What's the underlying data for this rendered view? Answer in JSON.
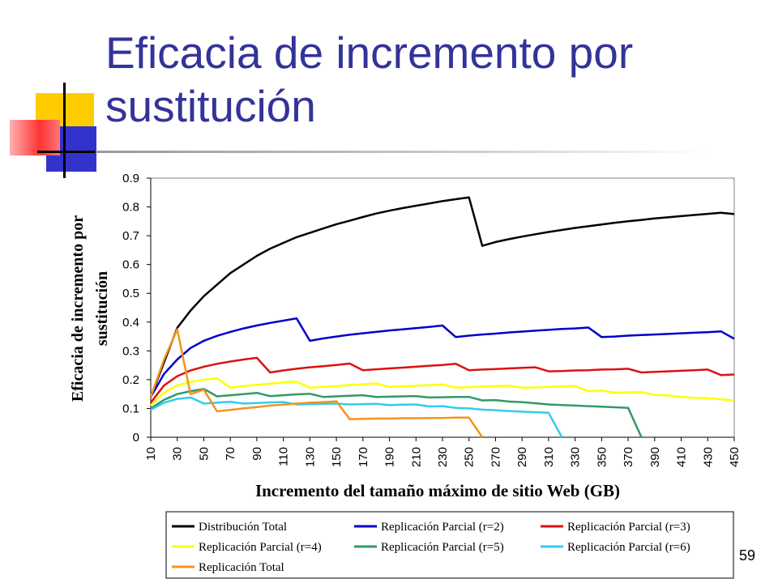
{
  "slide": {
    "title": "Eficacia de incremento por sustitución",
    "page_number": "59"
  },
  "colors": {
    "title": "#333399",
    "accent_yellow": "#FFCC00",
    "accent_blue": "#3333CC",
    "accent_red": "#FF3333"
  },
  "chart_data": {
    "type": "line",
    "title": "",
    "xlabel": "Incremento del tamaño máximo de sitio Web (GB)",
    "ylabel": "Eficacia de incremento por sustitución",
    "xlim": [
      10,
      450
    ],
    "ylim": [
      0,
      0.9
    ],
    "x_ticks": [
      10,
      30,
      50,
      70,
      90,
      110,
      130,
      150,
      170,
      190,
      210,
      230,
      250,
      270,
      290,
      310,
      330,
      350,
      370,
      390,
      410,
      430,
      450
    ],
    "y_ticks": [
      "0",
      "0.1",
      "0.2",
      "0.3",
      "0.4",
      "0.5",
      "0.6",
      "0.7",
      "0.8",
      "0.9"
    ],
    "legend_position": "bottom",
    "series": [
      {
        "name": "Distribución Total",
        "color": "#000000",
        "points": [
          [
            10,
            0.14
          ],
          [
            20,
            0.26
          ],
          [
            30,
            0.38
          ],
          [
            40,
            0.44
          ],
          [
            50,
            0.49
          ],
          [
            60,
            0.53
          ],
          [
            70,
            0.57
          ],
          [
            80,
            0.6
          ],
          [
            90,
            0.63
          ],
          [
            100,
            0.655
          ],
          [
            110,
            0.675
          ],
          [
            120,
            0.695
          ],
          [
            130,
            0.71
          ],
          [
            140,
            0.725
          ],
          [
            150,
            0.74
          ],
          [
            160,
            0.752
          ],
          [
            170,
            0.765
          ],
          [
            180,
            0.777
          ],
          [
            190,
            0.787
          ],
          [
            200,
            0.796
          ],
          [
            210,
            0.804
          ],
          [
            220,
            0.812
          ],
          [
            230,
            0.82
          ],
          [
            240,
            0.827
          ],
          [
            250,
            0.833
          ],
          [
            260,
            0.665
          ],
          [
            270,
            0.678
          ],
          [
            280,
            0.688
          ],
          [
            290,
            0.697
          ],
          [
            300,
            0.705
          ],
          [
            310,
            0.713
          ],
          [
            320,
            0.72
          ],
          [
            330,
            0.727
          ],
          [
            340,
            0.733
          ],
          [
            350,
            0.739
          ],
          [
            360,
            0.745
          ],
          [
            370,
            0.75
          ],
          [
            380,
            0.755
          ],
          [
            390,
            0.76
          ],
          [
            400,
            0.764
          ],
          [
            410,
            0.768
          ],
          [
            420,
            0.772
          ],
          [
            430,
            0.776
          ],
          [
            440,
            0.78
          ],
          [
            450,
            0.775
          ]
        ]
      },
      {
        "name": "Replicación Parcial (r=2)",
        "color": "#0000CC",
        "points": [
          [
            10,
            0.14
          ],
          [
            20,
            0.22
          ],
          [
            30,
            0.27
          ],
          [
            40,
            0.31
          ],
          [
            50,
            0.335
          ],
          [
            60,
            0.352
          ],
          [
            70,
            0.366
          ],
          [
            80,
            0.378
          ],
          [
            90,
            0.388
          ],
          [
            100,
            0.397
          ],
          [
            110,
            0.405
          ],
          [
            120,
            0.413
          ],
          [
            130,
            0.335
          ],
          [
            140,
            0.343
          ],
          [
            150,
            0.35
          ],
          [
            160,
            0.356
          ],
          [
            170,
            0.361
          ],
          [
            180,
            0.366
          ],
          [
            190,
            0.371
          ],
          [
            200,
            0.375
          ],
          [
            210,
            0.379
          ],
          [
            220,
            0.383
          ],
          [
            230,
            0.388
          ],
          [
            240,
            0.348
          ],
          [
            250,
            0.353
          ],
          [
            260,
            0.357
          ],
          [
            270,
            0.36
          ],
          [
            280,
            0.364
          ],
          [
            290,
            0.367
          ],
          [
            300,
            0.37
          ],
          [
            310,
            0.373
          ],
          [
            320,
            0.376
          ],
          [
            330,
            0.378
          ],
          [
            340,
            0.381
          ],
          [
            350,
            0.348
          ],
          [
            360,
            0.35
          ],
          [
            370,
            0.353
          ],
          [
            380,
            0.355
          ],
          [
            390,
            0.357
          ],
          [
            400,
            0.359
          ],
          [
            410,
            0.361
          ],
          [
            420,
            0.363
          ],
          [
            430,
            0.365
          ],
          [
            440,
            0.368
          ],
          [
            450,
            0.342
          ]
        ]
      },
      {
        "name": "Replicación Parcial (r=3)",
        "color": "#DD1111",
        "points": [
          [
            10,
            0.12
          ],
          [
            20,
            0.18
          ],
          [
            30,
            0.212
          ],
          [
            40,
            0.232
          ],
          [
            50,
            0.245
          ],
          [
            60,
            0.255
          ],
          [
            70,
            0.263
          ],
          [
            80,
            0.27
          ],
          [
            90,
            0.276
          ],
          [
            100,
            0.225
          ],
          [
            110,
            0.232
          ],
          [
            120,
            0.238
          ],
          [
            130,
            0.243
          ],
          [
            140,
            0.247
          ],
          [
            150,
            0.251
          ],
          [
            160,
            0.256
          ],
          [
            170,
            0.233
          ],
          [
            180,
            0.236
          ],
          [
            190,
            0.239
          ],
          [
            200,
            0.242
          ],
          [
            210,
            0.245
          ],
          [
            220,
            0.248
          ],
          [
            230,
            0.251
          ],
          [
            240,
            0.255
          ],
          [
            250,
            0.233
          ],
          [
            260,
            0.235
          ],
          [
            270,
            0.237
          ],
          [
            280,
            0.239
          ],
          [
            290,
            0.241
          ],
          [
            300,
            0.243
          ],
          [
            310,
            0.229
          ],
          [
            320,
            0.23
          ],
          [
            330,
            0.232
          ],
          [
            340,
            0.233
          ],
          [
            350,
            0.235
          ],
          [
            360,
            0.236
          ],
          [
            370,
            0.238
          ],
          [
            380,
            0.225
          ],
          [
            390,
            0.227
          ],
          [
            400,
            0.229
          ],
          [
            410,
            0.231
          ],
          [
            420,
            0.233
          ],
          [
            430,
            0.235
          ],
          [
            440,
            0.216
          ],
          [
            450,
            0.218
          ]
        ]
      },
      {
        "name": "Replicación Parcial (r=4)",
        "color": "#FFFF00",
        "points": [
          [
            10,
            0.11
          ],
          [
            20,
            0.155
          ],
          [
            30,
            0.18
          ],
          [
            40,
            0.192
          ],
          [
            50,
            0.2
          ],
          [
            60,
            0.205
          ],
          [
            70,
            0.172
          ],
          [
            80,
            0.178
          ],
          [
            90,
            0.182
          ],
          [
            100,
            0.186
          ],
          [
            110,
            0.19
          ],
          [
            120,
            0.193
          ],
          [
            130,
            0.172
          ],
          [
            140,
            0.175
          ],
          [
            150,
            0.178
          ],
          [
            160,
            0.181
          ],
          [
            170,
            0.184
          ],
          [
            180,
            0.187
          ],
          [
            190,
            0.175
          ],
          [
            200,
            0.177
          ],
          [
            210,
            0.179
          ],
          [
            220,
            0.181
          ],
          [
            230,
            0.183
          ],
          [
            240,
            0.172
          ],
          [
            250,
            0.174
          ],
          [
            260,
            0.176
          ],
          [
            270,
            0.178
          ],
          [
            280,
            0.179
          ],
          [
            290,
            0.172
          ],
          [
            300,
            0.173
          ],
          [
            310,
            0.175
          ],
          [
            320,
            0.177
          ],
          [
            330,
            0.178
          ],
          [
            340,
            0.16
          ],
          [
            350,
            0.162
          ],
          [
            360,
            0.155
          ],
          [
            370,
            0.156
          ],
          [
            380,
            0.157
          ],
          [
            390,
            0.147
          ],
          [
            400,
            0.145
          ],
          [
            410,
            0.14
          ],
          [
            420,
            0.137
          ],
          [
            430,
            0.136
          ],
          [
            440,
            0.132
          ],
          [
            450,
            0.128
          ]
        ]
      },
      {
        "name": "Replicación Parcial (r=5)",
        "color": "#339966",
        "points": [
          [
            10,
            0.1
          ],
          [
            20,
            0.13
          ],
          [
            30,
            0.15
          ],
          [
            40,
            0.16
          ],
          [
            50,
            0.168
          ],
          [
            60,
            0.142
          ],
          [
            70,
            0.146
          ],
          [
            80,
            0.15
          ],
          [
            90,
            0.154
          ],
          [
            100,
            0.143
          ],
          [
            110,
            0.146
          ],
          [
            120,
            0.149
          ],
          [
            130,
            0.151
          ],
          [
            140,
            0.14
          ],
          [
            150,
            0.142
          ],
          [
            160,
            0.144
          ],
          [
            170,
            0.146
          ],
          [
            180,
            0.14
          ],
          [
            190,
            0.141
          ],
          [
            200,
            0.142
          ],
          [
            210,
            0.143
          ],
          [
            220,
            0.138
          ],
          [
            230,
            0.139
          ],
          [
            240,
            0.14
          ],
          [
            250,
            0.14
          ],
          [
            260,
            0.128
          ],
          [
            270,
            0.129
          ],
          [
            280,
            0.124
          ],
          [
            290,
            0.122
          ],
          [
            300,
            0.118
          ],
          [
            310,
            0.114
          ],
          [
            320,
            0.112
          ],
          [
            330,
            0.11
          ],
          [
            340,
            0.108
          ],
          [
            350,
            0.106
          ],
          [
            360,
            0.104
          ],
          [
            370,
            0.102
          ],
          [
            380,
            0.0
          ]
        ]
      },
      {
        "name": "Replicación Parcial (r=6)",
        "color": "#33CCEE",
        "points": [
          [
            10,
            0.095
          ],
          [
            20,
            0.12
          ],
          [
            30,
            0.133
          ],
          [
            40,
            0.138
          ],
          [
            50,
            0.117
          ],
          [
            60,
            0.12
          ],
          [
            70,
            0.123
          ],
          [
            80,
            0.117
          ],
          [
            90,
            0.119
          ],
          [
            100,
            0.121
          ],
          [
            110,
            0.122
          ],
          [
            120,
            0.114
          ],
          [
            130,
            0.115
          ],
          [
            140,
            0.116
          ],
          [
            150,
            0.117
          ],
          [
            160,
            0.114
          ],
          [
            170,
            0.115
          ],
          [
            180,
            0.116
          ],
          [
            190,
            0.112
          ],
          [
            200,
            0.113
          ],
          [
            210,
            0.114
          ],
          [
            220,
            0.107
          ],
          [
            230,
            0.108
          ],
          [
            240,
            0.102
          ],
          [
            250,
            0.1
          ],
          [
            260,
            0.096
          ],
          [
            270,
            0.094
          ],
          [
            280,
            0.091
          ],
          [
            290,
            0.089
          ],
          [
            300,
            0.087
          ],
          [
            310,
            0.085
          ],
          [
            320,
            0.0
          ]
        ]
      },
      {
        "name": "Replicación Total",
        "color": "#F4941C",
        "points": [
          [
            10,
            0.14
          ],
          [
            20,
            0.27
          ],
          [
            30,
            0.375
          ],
          [
            40,
            0.15
          ],
          [
            50,
            0.165
          ],
          [
            60,
            0.09
          ],
          [
            70,
            0.095
          ],
          [
            80,
            0.1
          ],
          [
            90,
            0.105
          ],
          [
            100,
            0.11
          ],
          [
            110,
            0.113
          ],
          [
            120,
            0.117
          ],
          [
            130,
            0.12
          ],
          [
            140,
            0.122
          ],
          [
            150,
            0.125
          ],
          [
            160,
            0.063
          ],
          [
            170,
            0.064
          ],
          [
            180,
            0.065
          ],
          [
            190,
            0.065
          ],
          [
            200,
            0.066
          ],
          [
            210,
            0.066
          ],
          [
            220,
            0.067
          ],
          [
            230,
            0.067
          ],
          [
            240,
            0.068
          ],
          [
            250,
            0.068
          ],
          [
            260,
            0.0
          ]
        ]
      }
    ]
  }
}
